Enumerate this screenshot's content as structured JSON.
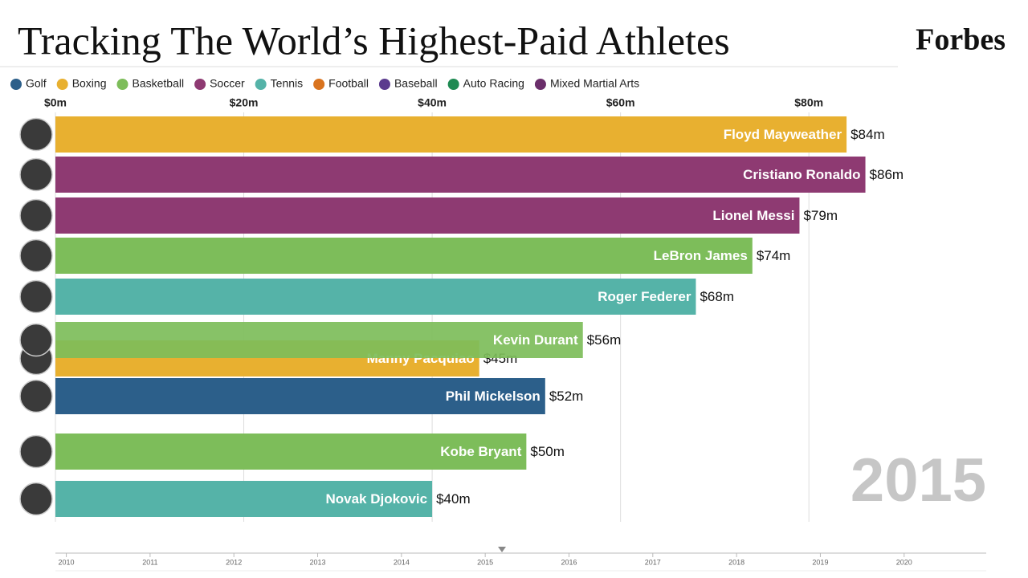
{
  "chart_data": {
    "type": "bar",
    "orientation": "horizontal",
    "title": "Tracking The World’s Highest-Paid Athletes",
    "brand": "Forbes",
    "year": "2015",
    "legend": [
      {
        "name": "Golf",
        "color": "#2c5f8a"
      },
      {
        "name": "Boxing",
        "color": "#e8b030"
      },
      {
        "name": "Basketball",
        "color": "#7dbd5a"
      },
      {
        "name": "Soccer",
        "color": "#8e3a72"
      },
      {
        "name": "Tennis",
        "color": "#55b3a8"
      },
      {
        "name": "Football",
        "color": "#d9731e"
      },
      {
        "name": "Baseball",
        "color": "#5b3b8e"
      },
      {
        "name": "Auto Racing",
        "color": "#1e8a52"
      },
      {
        "name": "Mixed Martial Arts",
        "color": "#6b2f6b"
      }
    ],
    "categories": [
      "Floyd Mayweather",
      "Cristiano Ronaldo",
      "Lionel Messi",
      "LeBron James",
      "Roger Federer",
      "Manny Pacquiao",
      "Kevin Durant",
      "Phil Mickelson",
      "Kobe Bryant",
      "Novak Djokovic"
    ],
    "values": [
      84,
      86,
      79,
      74,
      68,
      45,
      56,
      52,
      50,
      40
    ],
    "value_labels": [
      "$84m",
      "$86m",
      "$79m",
      "$74m",
      "$68m",
      "$45m",
      "$56m",
      "$52m",
      "$50m",
      "$40m"
    ],
    "colors": [
      "#e8b030",
      "#8e3a72",
      "#8e3a72",
      "#7dbd5a",
      "#55b3a8",
      "#e8b030",
      "#7dbd5a",
      "#2c5f8a",
      "#7dbd5a",
      "#55b3a8"
    ],
    "xlim": [
      0,
      99
    ],
    "xticks": [
      {
        "value": 0,
        "label": "$0m"
      },
      {
        "value": 20,
        "label": "$20m"
      },
      {
        "value": 40,
        "label": "$40m"
      },
      {
        "value": 60,
        "label": "$60m"
      },
      {
        "value": 80,
        "label": "$80m"
      }
    ],
    "grid": true,
    "timeline": {
      "xlim": [
        2009.87,
        2020.98
      ],
      "xticks": [
        2010,
        2011,
        2012,
        2013,
        2014,
        2015,
        2016,
        2017,
        2018,
        2019,
        2020
      ],
      "position": 2015.2
    }
  }
}
